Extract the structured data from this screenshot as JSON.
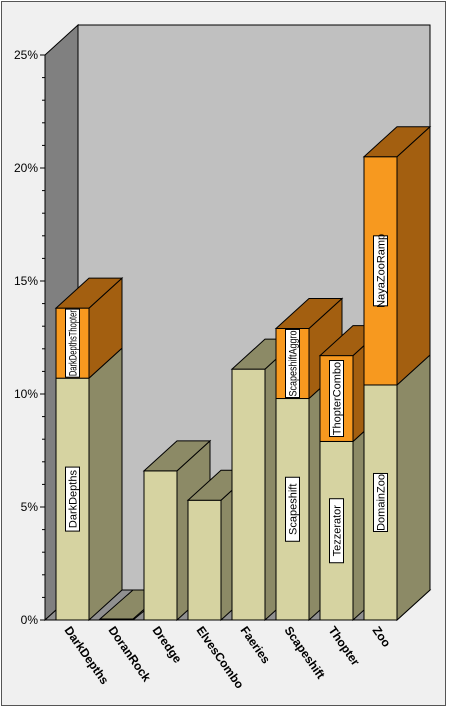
{
  "chart_data": {
    "type": "bar",
    "stacked": true,
    "three_d": true,
    "title": "",
    "xlabel": "",
    "ylabel": "",
    "ylim": [
      0,
      25
    ],
    "y_ticks": [
      "0%",
      "5%",
      "10%",
      "15%",
      "20%",
      "25%"
    ],
    "y_tick_values": [
      0,
      5,
      10,
      15,
      20,
      25
    ],
    "grid": false,
    "legend": "none",
    "categories": [
      "DarkDepths",
      "DoranRock",
      "Dredge",
      "ElvesCombo",
      "Faeries",
      "Scapeshift",
      "Thopter",
      "Zoo"
    ],
    "series": [
      {
        "values": [
          10.7,
          0.0,
          6.6,
          5.3,
          11.1,
          9.8,
          7.9,
          10.4
        ],
        "labels": [
          "DarkDepths",
          "",
          "",
          "",
          "",
          "Scapeshift",
          "Tezzerator",
          "DomainZoo"
        ]
      },
      {
        "values": [
          3.1,
          0.0,
          0.0,
          0.0,
          0.0,
          3.1,
          3.8,
          10.1
        ],
        "labels": [
          "DarkDepthsThopter",
          "",
          "",
          "",
          "",
          "ScapeshiftAggro",
          "ThopterCombo",
          "NayaZooRamp"
        ]
      }
    ],
    "colors": {
      "series1_front": "#d6d3a1",
      "series1_side": "#8c8a66",
      "series1_top": "#8c8a66",
      "series2_front": "#f7991f",
      "series2_side": "#a35f10",
      "series2_top": "#a35f10",
      "back_wall": "#c0c0c0",
      "left_wall": "#808080",
      "floor": "#909090",
      "frame": "#f0f0f0"
    }
  }
}
